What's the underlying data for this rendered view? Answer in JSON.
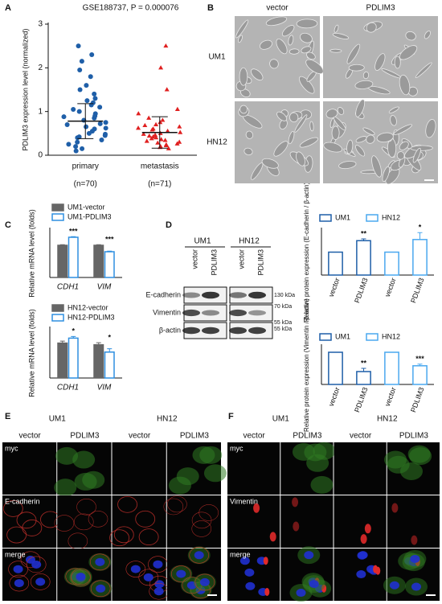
{
  "panels": [
    "A",
    "B",
    "C",
    "D",
    "E",
    "F"
  ],
  "chart_data": [
    {
      "type": "scatter",
      "title": "GSE188737, P = 0.000076",
      "ylabel": "PDLIM3 expression level (normalized)",
      "categories": [
        "primary",
        "metastasis"
      ],
      "category_notes": [
        "(n=70)",
        "(n=71)"
      ],
      "ylim": [
        0,
        3
      ],
      "yticks": [
        0,
        1,
        2,
        3
      ],
      "series": [
        {
          "name": "primary",
          "color": "#1f5fa8",
          "marker": "circle",
          "mean": 0.78,
          "sd": 0.4,
          "values": [
            2.5,
            2.3,
            2.15,
            1.95,
            1.8,
            1.6,
            1.5,
            1.4,
            1.3,
            1.25,
            1.2,
            1.15,
            1.1,
            1.05,
            1.0,
            0.95,
            0.9,
            0.88,
            0.85,
            0.8,
            0.75,
            0.72,
            0.7,
            0.65,
            0.62,
            0.6,
            0.55,
            0.5,
            0.48,
            0.45,
            0.42,
            0.4,
            0.35,
            0.3,
            0.25,
            0.2,
            0.15,
            0.1
          ]
        },
        {
          "name": "metastasis",
          "color": "#e02020",
          "marker": "triangle",
          "mean": 0.52,
          "sd": 0.36,
          "values": [
            2.5,
            2.0,
            1.5,
            1.05,
            0.95,
            0.85,
            0.8,
            0.75,
            0.7,
            0.68,
            0.65,
            0.62,
            0.6,
            0.58,
            0.55,
            0.52,
            0.5,
            0.48,
            0.46,
            0.44,
            0.42,
            0.4,
            0.38,
            0.36,
            0.34,
            0.32,
            0.3,
            0.28,
            0.26,
            0.24,
            0.22,
            0.2,
            0.18,
            0.15
          ]
        }
      ]
    },
    {
      "type": "bar",
      "ylabel": "Relative mRNA level (folds)",
      "categories": [
        "CDH1",
        "VIM"
      ],
      "ylim": [
        0,
        1.5
      ],
      "annotations": [
        "***",
        "***"
      ],
      "series": [
        {
          "name": "UM1-vector",
          "color": "#666666",
          "fill": "#666666",
          "values": [
            1.0,
            1.0
          ],
          "errors": [
            0.02,
            0.02
          ]
        },
        {
          "name": "UM1-PDLIM3",
          "color": "#2f8fe0",
          "fill": "#ffffff",
          "values": [
            1.25,
            0.8
          ],
          "errors": [
            0.02,
            0.02
          ]
        }
      ]
    },
    {
      "type": "bar",
      "ylabel": "Relative mRNA level (folds)",
      "categories": [
        "CDH1",
        "VIM"
      ],
      "ylim": [
        0,
        1.5
      ],
      "annotations": [
        "*",
        "*"
      ],
      "series": [
        {
          "name": "HN12-vector",
          "color": "#666666",
          "fill": "#666666",
          "values": [
            1.05,
            1.0
          ],
          "errors": [
            0.06,
            0.06
          ]
        },
        {
          "name": "HN12-PDLIM3",
          "color": "#2f8fe0",
          "fill": "#ffffff",
          "values": [
            1.2,
            0.78
          ],
          "errors": [
            0.05,
            0.1
          ]
        }
      ]
    },
    {
      "type": "bar",
      "ylabel": "Relative protein expression (E-cadherin / β-actin)",
      "categories": [
        "vector",
        "PDLIM3",
        "vector",
        "PDLIM3"
      ],
      "ylim": [
        0,
        2
      ],
      "annotations": [
        null,
        "**",
        null,
        "*"
      ],
      "series": [
        {
          "name": "UM1",
          "color": "#1f5fa8",
          "fill": "#ffffff",
          "values": [
            1.0,
            1.5,
            null,
            null
          ],
          "errors": [
            0,
            0.08,
            null,
            null
          ]
        },
        {
          "name": "HN12",
          "color": "#4aa8ef",
          "fill": "#ffffff",
          "values": [
            null,
            null,
            1.0,
            1.55
          ],
          "errors": [
            null,
            null,
            0,
            0.3
          ]
        }
      ]
    },
    {
      "type": "bar",
      "ylabel": "Relative protein expression (Vimentin / β-actin)",
      "categories": [
        "vector",
        "PDLIM3",
        "vector",
        "PDLIM3"
      ],
      "ylim": [
        0,
        1.2
      ],
      "annotations": [
        null,
        "**",
        null,
        "***"
      ],
      "series": [
        {
          "name": "UM1",
          "color": "#1f5fa8",
          "fill": "#ffffff",
          "values": [
            1.0,
            0.4,
            null,
            null
          ],
          "errors": [
            0,
            0.1,
            null,
            null
          ]
        },
        {
          "name": "HN12",
          "color": "#4aa8ef",
          "fill": "#ffffff",
          "values": [
            null,
            null,
            1.0,
            0.58
          ],
          "errors": [
            null,
            null,
            0,
            0.05
          ]
        }
      ]
    }
  ],
  "micrographs": {
    "columns": [
      "vector",
      "PDLIM3"
    ],
    "rows": [
      "UM1",
      "HN12"
    ]
  },
  "blot": {
    "groups": [
      "UM1",
      "HN12"
    ],
    "lanes": [
      "vector",
      "PDLIM3",
      "vector",
      "PDLIM3"
    ],
    "proteins": [
      "E-cadherin",
      "Vimentin",
      "β-actin"
    ],
    "markers": [
      "130 kDa",
      "70 kDa",
      "55 kDa",
      "55 kDa"
    ]
  },
  "if_e": {
    "groups": [
      "UM1",
      "HN12"
    ],
    "columns": [
      "vector",
      "PDLIM3",
      "vector",
      "PDLIM3"
    ],
    "rows": [
      "myc",
      "E-cadherin",
      "merge"
    ]
  },
  "if_f": {
    "groups": [
      "UM1",
      "HN12"
    ],
    "columns": [
      "vector",
      "PDLIM3",
      "vector",
      "PDLIM3"
    ],
    "rows": [
      "myc",
      "Vimentin",
      "merge"
    ]
  }
}
